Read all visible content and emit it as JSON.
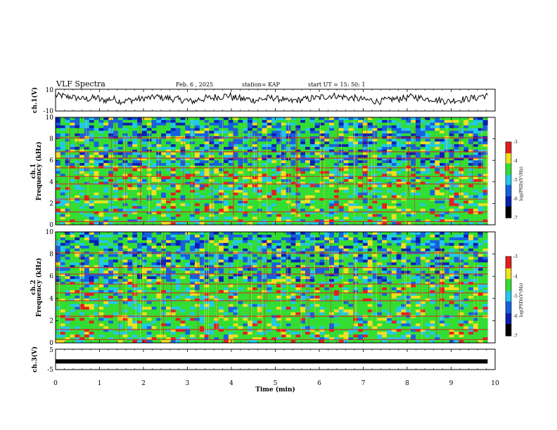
{
  "header": {
    "title": "VLF Spectra",
    "date": "Feb. 6 , 2025",
    "station": "station= KAP",
    "start_ut": "start UT =  15: 50: 1"
  },
  "chart_data": [
    {
      "type": "line",
      "panel": "waveform-ch1",
      "ylabel": "ch.1(V)",
      "ylim": [
        -10,
        10
      ],
      "yticks": [
        "10",
        "-10"
      ],
      "xlim": [
        0,
        10
      ],
      "series": [
        {
          "values": [
            4,
            3,
            2,
            1,
            2,
            0,
            1,
            -1,
            0,
            1,
            2,
            3,
            2,
            1,
            0,
            -1,
            1,
            2,
            3,
            4,
            2,
            1,
            0,
            1,
            2,
            1,
            -1,
            0,
            1,
            2,
            3,
            4,
            3,
            2,
            1,
            0,
            -1,
            0,
            1,
            2,
            3,
            2,
            1,
            0,
            -1,
            0,
            1,
            2,
            4,
            3
          ]
        }
      ]
    },
    {
      "type": "heatmap",
      "panel": "spectrogram-ch1",
      "ylabel": "ch.1 Frequency (kHz)",
      "ylim": [
        0,
        10
      ],
      "yticks": [
        "0",
        "2",
        "4",
        "6",
        "8",
        "10"
      ],
      "xlim": [
        0,
        10
      ],
      "colorbar": {
        "label": "log(PSD)(V²/Hz)",
        "range": [
          -7,
          -3
        ],
        "ticks": [
          "-3",
          "-4",
          "-5",
          "-6",
          "-7"
        ]
      }
    },
    {
      "type": "heatmap",
      "panel": "spectrogram-ch2",
      "ylabel": "ch.2 Frequency (kHz)",
      "ylim": [
        0,
        10
      ],
      "yticks": [
        "0",
        "2",
        "4",
        "6",
        "8",
        "10"
      ],
      "xlim": [
        0,
        10
      ],
      "colorbar": {
        "label": "log(PSD)(V²/Hz)",
        "range": [
          -7,
          -3
        ],
        "ticks": [
          "-3",
          "-4",
          "-5",
          "-6",
          "-7"
        ]
      }
    },
    {
      "type": "line",
      "panel": "waveform-ch3",
      "ylabel": "ch.3(V)",
      "ylim": [
        -5,
        5
      ],
      "yticks": [
        "5",
        "-5"
      ],
      "xlim": [
        0,
        10
      ],
      "series": [
        {
          "values": [
            -1,
            -1
          ]
        }
      ]
    }
  ],
  "x_axis": {
    "label": "Time (min)",
    "ticks": [
      "0",
      "1",
      "2",
      "3",
      "4",
      "5",
      "6",
      "7",
      "8",
      "9",
      "10"
    ]
  },
  "colors": {
    "background": "#ffffff",
    "axes": "#000000",
    "spectrum_green": "#33dd33",
    "spectrum_blue": "#1560e0",
    "spectrum_red": "#e02020",
    "spectrum_yellow": "#f0e020"
  }
}
